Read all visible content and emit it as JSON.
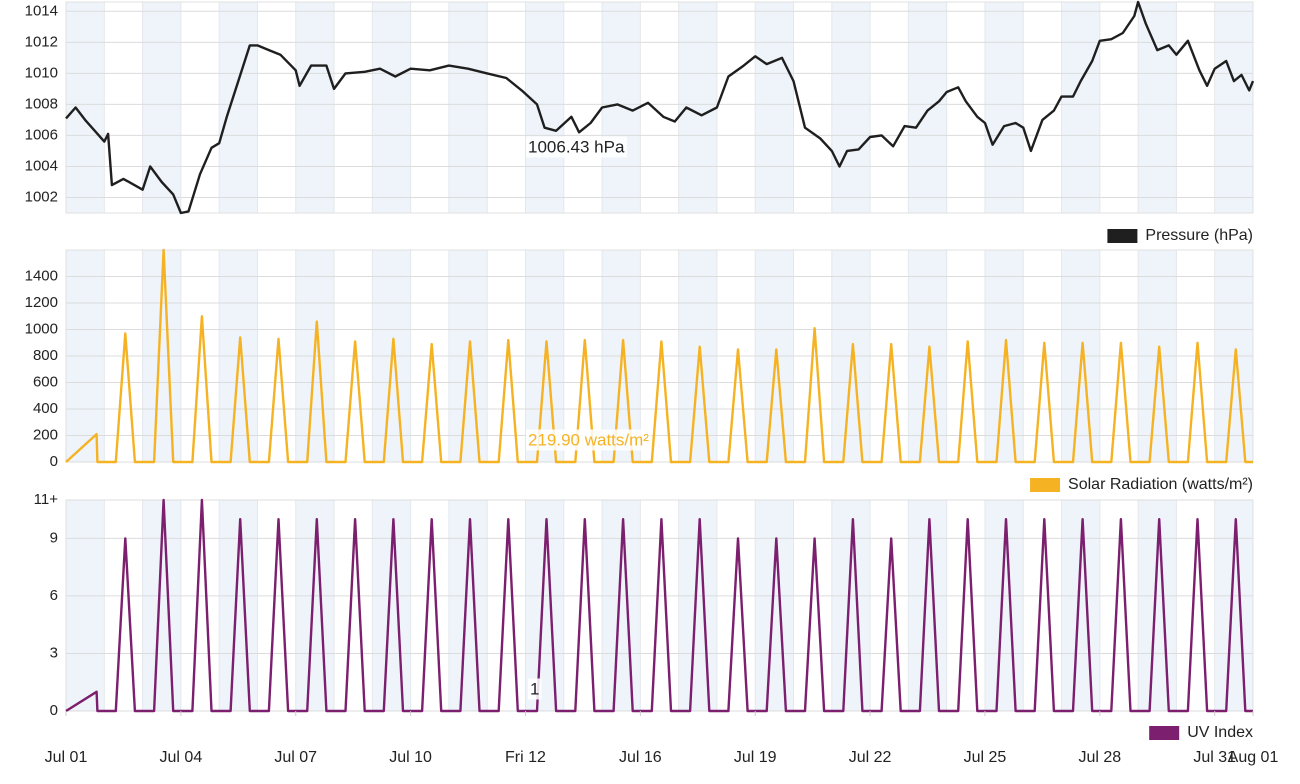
{
  "chart_data": [
    {
      "type": "line",
      "legend": "bottom-right",
      "annotation": "1006.43 hPa",
      "grid": true,
      "xlim": [
        0,
        31
      ],
      "ylim": [
        1001,
        1014.6
      ],
      "yticks": [
        1002,
        1004,
        1006,
        1008,
        1010,
        1012,
        1014
      ],
      "x": [
        0,
        0.25,
        0.5,
        1.0,
        1.1,
        1.2,
        1.5,
        2.0,
        2.2,
        2.5,
        2.8,
        3.0,
        3.2,
        3.5,
        3.8,
        4.0,
        4.2,
        4.5,
        4.8,
        5.0,
        5.3,
        5.6,
        6.0,
        6.1,
        6.4,
        6.8,
        7.0,
        7.3,
        7.8,
        8.2,
        8.6,
        9.0,
        9.5,
        10.0,
        10.5,
        11.0,
        11.5,
        11.9,
        12.3,
        12.5,
        12.8,
        13.2,
        13.4,
        13.7,
        14.0,
        14.4,
        14.8,
        15.2,
        15.6,
        15.9,
        16.2,
        16.6,
        17.0,
        17.3,
        17.7,
        18.0,
        18.3,
        18.7,
        19.0,
        19.3,
        19.7,
        20.0,
        20.2,
        20.4,
        20.7,
        21.0,
        21.3,
        21.6,
        21.9,
        22.2,
        22.5,
        22.8,
        23.0,
        23.3,
        23.5,
        23.8,
        24.0,
        24.2,
        24.5,
        24.8,
        25.0,
        25.2,
        25.5,
        25.8,
        26.0,
        26.3,
        26.5,
        26.8,
        27.0,
        27.3,
        27.6,
        27.9,
        28.0,
        28.2,
        28.5,
        28.8,
        29.0,
        29.3,
        29.6,
        29.8,
        30.0,
        30.3,
        30.5,
        30.7,
        30.9,
        31.0
      ],
      "series": [
        {
          "name": "Pressure (hPa)",
          "color": "#1f1f1f",
          "values": [
            1007.1,
            1007.8,
            1007,
            1005.6,
            1006.1,
            1002.8,
            1003.2,
            1002.5,
            1004,
            1003,
            1002.2,
            1001,
            1001.1,
            1003.5,
            1005.2,
            1005.5,
            1007.2,
            1009.5,
            1011.8,
            1011.8,
            1011.5,
            1011.2,
            1010.2,
            1009.2,
            1010.5,
            1010.5,
            1009,
            1010,
            1010.1,
            1010.3,
            1009.8,
            1010.3,
            1010.2,
            1010.5,
            1010.3,
            1010,
            1009.7,
            1008.9,
            1008,
            1006.5,
            1006.3,
            1007.2,
            1006.2,
            1006.8,
            1007.8,
            1008,
            1007.6,
            1008.1,
            1007.2,
            1006.9,
            1007.8,
            1007.3,
            1007.8,
            1009.8,
            1010.5,
            1011.1,
            1010.6,
            1011,
            1009.5,
            1006.5,
            1005.8,
            1005,
            1004,
            1005,
            1005.1,
            1005.9,
            1006,
            1005.3,
            1006.6,
            1006.5,
            1007.6,
            1008.2,
            1008.8,
            1009.1,
            1008.2,
            1007.2,
            1006.8,
            1005.4,
            1006.6,
            1006.8,
            1006.5,
            1005,
            1007,
            1007.6,
            1008.5,
            1008.5,
            1009.5,
            1010.8,
            1012.1,
            1012.2,
            1012.6,
            1013.7,
            1014.6,
            1013.2,
            1011.5,
            1011.8,
            1011.2,
            1012.1,
            1010.2,
            1009.2,
            1010.3,
            1010.8,
            1009.5,
            1009.9,
            1008.9,
            1009.5
          ]
        }
      ]
    },
    {
      "type": "line",
      "legend": "bottom-right",
      "annotation": "219.90 watts/m²",
      "grid": true,
      "xlim": [
        0,
        31
      ],
      "ylim": [
        0,
        1600
      ],
      "yticks": [
        0,
        200,
        400,
        600,
        800,
        1000,
        1200,
        1400
      ],
      "x": [
        0,
        0.8,
        0.82,
        1.3,
        1.55,
        1.8,
        2.3,
        2.55,
        2.8,
        3.3,
        3.55,
        3.8,
        4.3,
        4.55,
        4.8,
        5.3,
        5.55,
        5.8,
        6.3,
        6.55,
        6.8,
        7.3,
        7.55,
        7.8,
        8.3,
        8.55,
        8.8,
        9.3,
        9.55,
        9.8,
        10.3,
        10.55,
        10.8,
        11.3,
        11.55,
        11.8,
        12.3,
        12.55,
        12.8,
        13.3,
        13.55,
        13.8,
        14.3,
        14.55,
        14.8,
        15.3,
        15.55,
        15.8,
        16.3,
        16.55,
        16.8,
        17.3,
        17.55,
        17.8,
        18.3,
        18.55,
        18.8,
        19.3,
        19.55,
        19.8,
        20.3,
        20.55,
        20.8,
        21.3,
        21.55,
        21.8,
        22.3,
        22.55,
        22.8,
        23.3,
        23.55,
        23.8,
        24.3,
        24.55,
        24.8,
        25.3,
        25.55,
        25.8,
        26.3,
        26.55,
        26.8,
        27.3,
        27.55,
        27.8,
        28.3,
        28.55,
        28.8,
        29.3,
        29.55,
        29.8,
        30.3,
        30.55,
        30.8,
        31
      ],
      "series": [
        {
          "name": "Solar Radiation (watts/m²)",
          "color": "#f5b324",
          "values": [
            0,
            210,
            0,
            0,
            970,
            0,
            0,
            1600,
            0,
            0,
            1100,
            0,
            0,
            940,
            0,
            0,
            930,
            0,
            0,
            1060,
            0,
            0,
            910,
            0,
            0,
            930,
            0,
            0,
            890,
            0,
            0,
            910,
            0,
            0,
            920,
            0,
            0,
            910,
            0,
            0,
            920,
            0,
            0,
            920,
            0,
            0,
            910,
            0,
            0,
            870,
            0,
            0,
            850,
            0,
            0,
            850,
            0,
            0,
            1010,
            0,
            0,
            890,
            0,
            0,
            890,
            0,
            0,
            870,
            0,
            0,
            910,
            0,
            0,
            920,
            0,
            0,
            900,
            0,
            0,
            900,
            0,
            0,
            900,
            0,
            0,
            870,
            0,
            0,
            900,
            0,
            0,
            850,
            0,
            0
          ]
        }
      ]
    },
    {
      "type": "line",
      "legend": "bottom-right",
      "annotation": "1",
      "grid": true,
      "xlim": [
        0,
        31
      ],
      "ylim": [
        0,
        11
      ],
      "yticks": [
        0,
        3,
        6,
        9,
        {
          "value": 11,
          "label": "11+"
        }
      ],
      "xticks": [
        {
          "value": 0,
          "label": "Jul 01"
        },
        {
          "value": 3,
          "label": "Jul 04"
        },
        {
          "value": 6,
          "label": "Jul 07"
        },
        {
          "value": 9,
          "label": "Jul 10"
        },
        {
          "value": 12,
          "label": "Fri 12"
        },
        {
          "value": 15,
          "label": "Jul 16"
        },
        {
          "value": 18,
          "label": "Jul 19"
        },
        {
          "value": 21,
          "label": "Jul 22"
        },
        {
          "value": 24,
          "label": "Jul 25"
        },
        {
          "value": 27,
          "label": "Jul 28"
        },
        {
          "value": 30,
          "label": "Jul 31"
        },
        {
          "value": 31,
          "label": "Aug 01"
        }
      ],
      "x": [
        0,
        0.8,
        0.82,
        1.3,
        1.55,
        1.8,
        2.3,
        2.55,
        2.8,
        3.3,
        3.55,
        3.8,
        4.3,
        4.55,
        4.8,
        5.3,
        5.55,
        5.8,
        6.3,
        6.55,
        6.8,
        7.3,
        7.55,
        7.8,
        8.3,
        8.55,
        8.8,
        9.3,
        9.55,
        9.8,
        10.3,
        10.55,
        10.8,
        11.3,
        11.55,
        11.8,
        12.3,
        12.55,
        12.8,
        13.3,
        13.55,
        13.8,
        14.3,
        14.55,
        14.8,
        15.3,
        15.55,
        15.8,
        16.3,
        16.55,
        16.8,
        17.3,
        17.55,
        17.8,
        18.3,
        18.55,
        18.8,
        19.3,
        19.55,
        19.8,
        20.3,
        20.55,
        20.8,
        21.3,
        21.55,
        21.8,
        22.3,
        22.55,
        22.8,
        23.3,
        23.55,
        23.8,
        24.3,
        24.55,
        24.8,
        25.3,
        25.55,
        25.8,
        26.3,
        26.55,
        26.8,
        27.3,
        27.55,
        27.8,
        28.3,
        28.55,
        28.8,
        29.3,
        29.55,
        29.8,
        30.3,
        30.55,
        30.8,
        31
      ],
      "series": [
        {
          "name": "UV Index",
          "color": "#7b1f6e",
          "values": [
            0,
            1,
            0,
            0,
            9,
            0,
            0,
            11,
            0,
            0,
            11,
            0,
            0,
            10,
            0,
            0,
            10,
            0,
            0,
            10,
            0,
            0,
            10,
            0,
            0,
            10,
            0,
            0,
            10,
            0,
            0,
            10,
            0,
            0,
            10,
            0,
            0,
            10,
            0,
            0,
            10,
            0,
            0,
            10,
            0,
            0,
            10,
            0,
            0,
            10,
            0,
            0,
            9,
            0,
            0,
            9,
            0,
            0,
            9,
            0,
            0,
            10,
            0,
            0,
            9,
            0,
            0,
            10,
            0,
            0,
            10,
            0,
            0,
            10,
            0,
            0,
            10,
            0,
            0,
            10,
            0,
            0,
            10,
            0,
            0,
            10,
            0,
            0,
            10,
            0,
            0,
            10,
            0,
            0
          ]
        }
      ]
    }
  ]
}
